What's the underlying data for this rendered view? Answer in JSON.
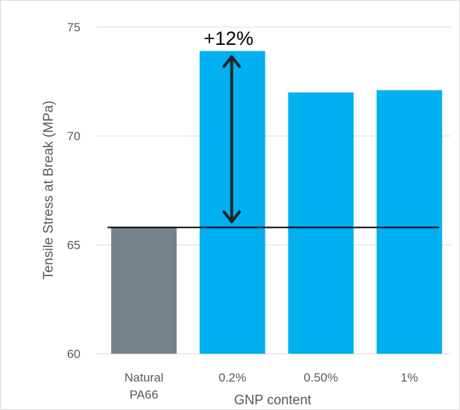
{
  "chart_data": {
    "type": "bar",
    "categories": [
      [
        "Natural",
        "PA66"
      ],
      [
        "0.2%"
      ],
      [
        "0.50%"
      ],
      [
        "1%"
      ]
    ],
    "values": [
      65.8,
      73.9,
      72.0,
      72.1
    ],
    "bar_colors": [
      "#76828a",
      "#00b0f0",
      "#00b0f0",
      "#00b0f0"
    ],
    "xlabel": "GNP content",
    "ylabel": "Tensile Stress at Break (MPa)",
    "ylim": [
      60,
      75
    ],
    "yticks": [
      60,
      65,
      70,
      75
    ],
    "grid": true,
    "reference_line": {
      "value": 65.8,
      "color": "#000000"
    },
    "annotation": {
      "text": "+12%",
      "arrow_from": 65.8,
      "arrow_to": 73.9,
      "category_index": 1
    }
  }
}
